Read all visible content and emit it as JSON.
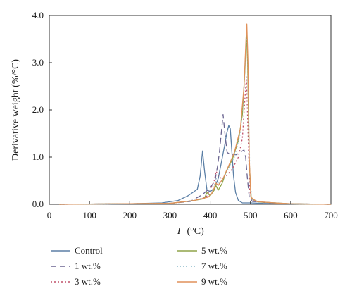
{
  "chart_data": {
    "type": "line",
    "xlabel_var": "T",
    "xlabel_unit": "(°C)",
    "ylabel": "Derivative weight (%/°C)",
    "xlim": [
      0,
      700
    ],
    "ylim": [
      0,
      4.0
    ],
    "xticks": [
      "0",
      "100",
      "200",
      "300",
      "400",
      "500",
      "600",
      "700"
    ],
    "yticks": [
      "0.0",
      "1.0",
      "2.0",
      "3.0",
      "4.0"
    ],
    "grid": false,
    "legend_position": "bottom",
    "series": [
      {
        "name": "Control",
        "color": "#5b7fa6",
        "dash": "solid",
        "points": [
          [
            25,
            0.0
          ],
          [
            200,
            0.01
          ],
          [
            280,
            0.03
          ],
          [
            320,
            0.08
          ],
          [
            345,
            0.18
          ],
          [
            360,
            0.27
          ],
          [
            368,
            0.32
          ],
          [
            375,
            0.6
          ],
          [
            381,
            1.13
          ],
          [
            386,
            0.7
          ],
          [
            392,
            0.3
          ],
          [
            400,
            0.27
          ],
          [
            410,
            0.33
          ],
          [
            420,
            0.55
          ],
          [
            428,
            0.9
          ],
          [
            436,
            1.25
          ],
          [
            441,
            1.5
          ],
          [
            446,
            1.67
          ],
          [
            450,
            1.6
          ],
          [
            454,
            1.1
          ],
          [
            458,
            0.6
          ],
          [
            463,
            0.25
          ],
          [
            470,
            0.08
          ],
          [
            480,
            0.03
          ],
          [
            500,
            0.03
          ],
          [
            530,
            0.02
          ],
          [
            600,
            0.01
          ],
          [
            700,
            0.0
          ]
        ]
      },
      {
        "name": "1 wt.%",
        "color": "#6a6490",
        "dash": "8,5",
        "points": [
          [
            25,
            0.0
          ],
          [
            300,
            0.02
          ],
          [
            350,
            0.06
          ],
          [
            380,
            0.2
          ],
          [
            400,
            0.35
          ],
          [
            412,
            0.5
          ],
          [
            418,
            0.8
          ],
          [
            423,
            1.1
          ],
          [
            428,
            1.55
          ],
          [
            432,
            1.9
          ],
          [
            436,
            1.55
          ],
          [
            442,
            1.1
          ],
          [
            450,
            1.05
          ],
          [
            465,
            1.05
          ],
          [
            478,
            1.12
          ],
          [
            484,
            1.15
          ],
          [
            488,
            1.0
          ],
          [
            492,
            0.6
          ],
          [
            497,
            0.15
          ],
          [
            505,
            0.06
          ],
          [
            520,
            0.05
          ],
          [
            550,
            0.03
          ],
          [
            600,
            0.01
          ],
          [
            700,
            0.0
          ]
        ]
      },
      {
        "name": "3 wt.%",
        "color": "#c0506a",
        "dash": "2,3",
        "points": [
          [
            25,
            0.0
          ],
          [
            300,
            0.02
          ],
          [
            360,
            0.08
          ],
          [
            390,
            0.15
          ],
          [
            400,
            0.3
          ],
          [
            410,
            0.5
          ],
          [
            415,
            0.7
          ],
          [
            420,
            0.6
          ],
          [
            428,
            0.55
          ],
          [
            440,
            0.6
          ],
          [
            455,
            0.75
          ],
          [
            470,
            1.0
          ],
          [
            480,
            1.4
          ],
          [
            486,
            2.2
          ],
          [
            490,
            2.7
          ],
          [
            494,
            1.5
          ],
          [
            498,
            0.3
          ],
          [
            503,
            0.08
          ],
          [
            520,
            0.05
          ],
          [
            600,
            0.01
          ],
          [
            700,
            0.0
          ]
        ]
      },
      {
        "name": "5 wt.%",
        "color": "#8fa448",
        "dash": "solid",
        "points": [
          [
            25,
            0.0
          ],
          [
            300,
            0.02
          ],
          [
            360,
            0.08
          ],
          [
            385,
            0.12
          ],
          [
            392,
            0.25
          ],
          [
            400,
            0.18
          ],
          [
            410,
            0.3
          ],
          [
            414,
            0.4
          ],
          [
            420,
            0.3
          ],
          [
            430,
            0.45
          ],
          [
            440,
            0.7
          ],
          [
            455,
            0.95
          ],
          [
            470,
            1.35
          ],
          [
            480,
            1.9
          ],
          [
            486,
            2.8
          ],
          [
            490,
            3.6
          ],
          [
            493,
            3.0
          ],
          [
            497,
            0.9
          ],
          [
            502,
            0.12
          ],
          [
            520,
            0.05
          ],
          [
            600,
            0.01
          ],
          [
            700,
            0.0
          ]
        ]
      },
      {
        "name": "7 wt.%",
        "color": "#8ab8c8",
        "dash": "1,3",
        "points": [
          [
            25,
            0.0
          ],
          [
            300,
            0.02
          ],
          [
            360,
            0.08
          ],
          [
            390,
            0.15
          ],
          [
            400,
            0.2
          ],
          [
            410,
            0.4
          ],
          [
            416,
            0.55
          ],
          [
            422,
            0.45
          ],
          [
            432,
            0.5
          ],
          [
            445,
            0.75
          ],
          [
            460,
            1.0
          ],
          [
            475,
            1.5
          ],
          [
            484,
            2.4
          ],
          [
            489,
            3.4
          ],
          [
            492,
            3.55
          ],
          [
            495,
            2.2
          ],
          [
            499,
            0.5
          ],
          [
            504,
            0.1
          ],
          [
            520,
            0.05
          ],
          [
            600,
            0.01
          ],
          [
            700,
            0.0
          ]
        ]
      },
      {
        "name": "9 wt.%",
        "color": "#e0915a",
        "dash": "solid",
        "points": [
          [
            25,
            0.0
          ],
          [
            300,
            0.02
          ],
          [
            360,
            0.08
          ],
          [
            395,
            0.15
          ],
          [
            403,
            0.22
          ],
          [
            410,
            0.35
          ],
          [
            414,
            0.45
          ],
          [
            420,
            0.4
          ],
          [
            432,
            0.55
          ],
          [
            445,
            0.8
          ],
          [
            460,
            1.1
          ],
          [
            475,
            1.6
          ],
          [
            484,
            2.5
          ],
          [
            489,
            3.5
          ],
          [
            491,
            3.82
          ],
          [
            494,
            3.0
          ],
          [
            497,
            1.0
          ],
          [
            501,
            0.15
          ],
          [
            515,
            0.06
          ],
          [
            560,
            0.03
          ],
          [
            600,
            0.01
          ],
          [
            700,
            0.0
          ]
        ]
      }
    ]
  }
}
